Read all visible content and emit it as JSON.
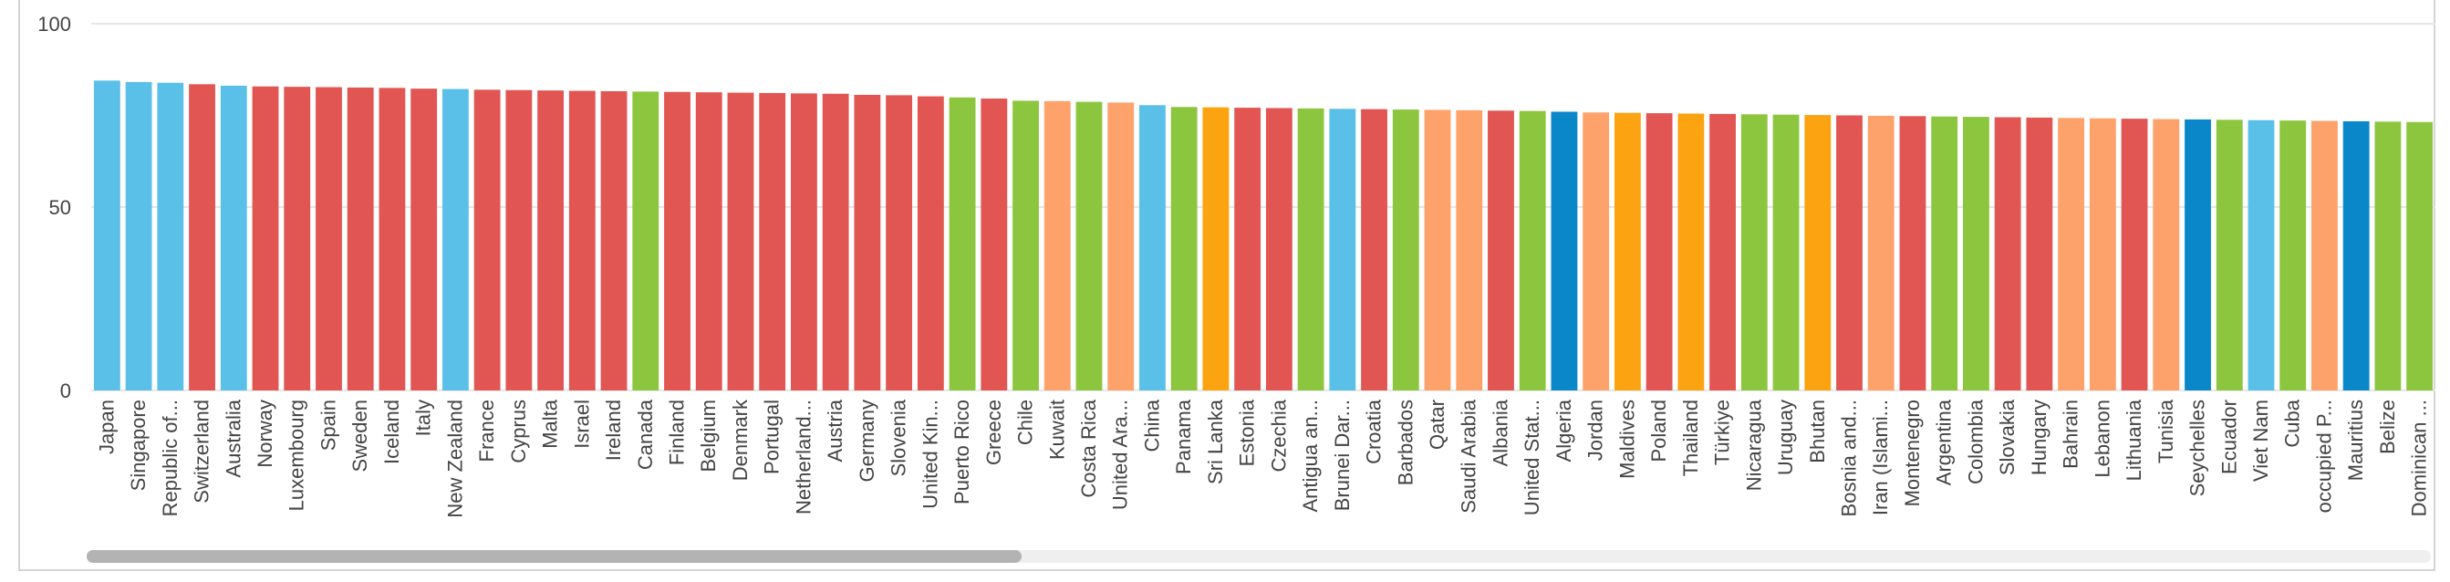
{
  "chart_data": {
    "type": "bar",
    "title": "",
    "xlabel": "",
    "ylabel": "",
    "ylim": [
      0,
      100
    ],
    "yticks": [
      0,
      50,
      100
    ],
    "grid": true,
    "legend": "none",
    "colors": {
      "red": "#e15652",
      "light_blue": "#5bc0e8",
      "green": "#8cc63f",
      "peach": "#fda26b",
      "orange": "#fca311",
      "dark_blue": "#0a87c8"
    },
    "categories": [
      "Japan",
      "Singapore",
      "Republic of...",
      "Switzerland",
      "Australia",
      "Norway",
      "Luxembourg",
      "Spain",
      "Sweden",
      "Iceland",
      "Italy",
      "New Zealand",
      "France",
      "Cyprus",
      "Malta",
      "Israel",
      "Ireland",
      "Canada",
      "Finland",
      "Belgium",
      "Denmark",
      "Portugal",
      "Netherland...",
      "Austria",
      "Germany",
      "Slovenia",
      "United Kin...",
      "Puerto Rico",
      "Greece",
      "Chile",
      "Kuwait",
      "Costa Rica",
      "United Ara...",
      "China",
      "Panama",
      "Sri Lanka",
      "Estonia",
      "Czechia",
      "Antigua an...",
      "Brunei Dar...",
      "Croatia",
      "Barbados",
      "Qatar",
      "Saudi Arabia",
      "Albania",
      "United Stat...",
      "Algeria",
      "Jordan",
      "Maldives",
      "Poland",
      "Thailand",
      "Türkiye",
      "Nicaragua",
      "Uruguay",
      "Bhutan",
      "Bosnia and...",
      "Iran (Islami...",
      "Montenegro",
      "Argentina",
      "Colombia",
      "Slovakia",
      "Hungary",
      "Bahrain",
      "Lebanon",
      "Lithuania",
      "Tunisia",
      "Seychelles",
      "Ecuador",
      "Viet Nam",
      "Cuba",
      "occupied P...",
      "Mauritius",
      "Belize",
      "Dominican ..."
    ],
    "values": [
      84.5,
      84.1,
      83.9,
      83.5,
      83.1,
      82.9,
      82.8,
      82.7,
      82.6,
      82.5,
      82.3,
      82.2,
      82.0,
      81.9,
      81.8,
      81.7,
      81.6,
      81.5,
      81.4,
      81.3,
      81.2,
      81.1,
      81.0,
      80.9,
      80.6,
      80.5,
      80.2,
      79.9,
      79.6,
      79.0,
      78.9,
      78.7,
      78.5,
      77.8,
      77.3,
      77.2,
      77.1,
      77.0,
      76.9,
      76.8,
      76.7,
      76.6,
      76.5,
      76.4,
      76.3,
      76.2,
      76.0,
      75.8,
      75.7,
      75.6,
      75.5,
      75.4,
      75.3,
      75.2,
      75.1,
      75.0,
      74.9,
      74.8,
      74.7,
      74.6,
      74.5,
      74.4,
      74.3,
      74.2,
      74.1,
      74.0,
      73.9,
      73.8,
      73.7,
      73.6,
      73.5,
      73.4,
      73.3,
      73.2
    ],
    "bar_colors": [
      "light_blue",
      "light_blue",
      "light_blue",
      "red",
      "light_blue",
      "red",
      "red",
      "red",
      "red",
      "red",
      "red",
      "light_blue",
      "red",
      "red",
      "red",
      "red",
      "red",
      "green",
      "red",
      "red",
      "red",
      "red",
      "red",
      "red",
      "red",
      "red",
      "red",
      "green",
      "red",
      "green",
      "peach",
      "green",
      "peach",
      "light_blue",
      "green",
      "orange",
      "red",
      "red",
      "green",
      "light_blue",
      "red",
      "green",
      "peach",
      "peach",
      "red",
      "green",
      "dark_blue",
      "peach",
      "orange",
      "red",
      "orange",
      "red",
      "green",
      "green",
      "orange",
      "red",
      "peach",
      "red",
      "green",
      "green",
      "red",
      "red",
      "peach",
      "peach",
      "red",
      "peach",
      "dark_blue",
      "green",
      "light_blue",
      "green",
      "peach",
      "dark_blue",
      "green",
      "green"
    ]
  }
}
